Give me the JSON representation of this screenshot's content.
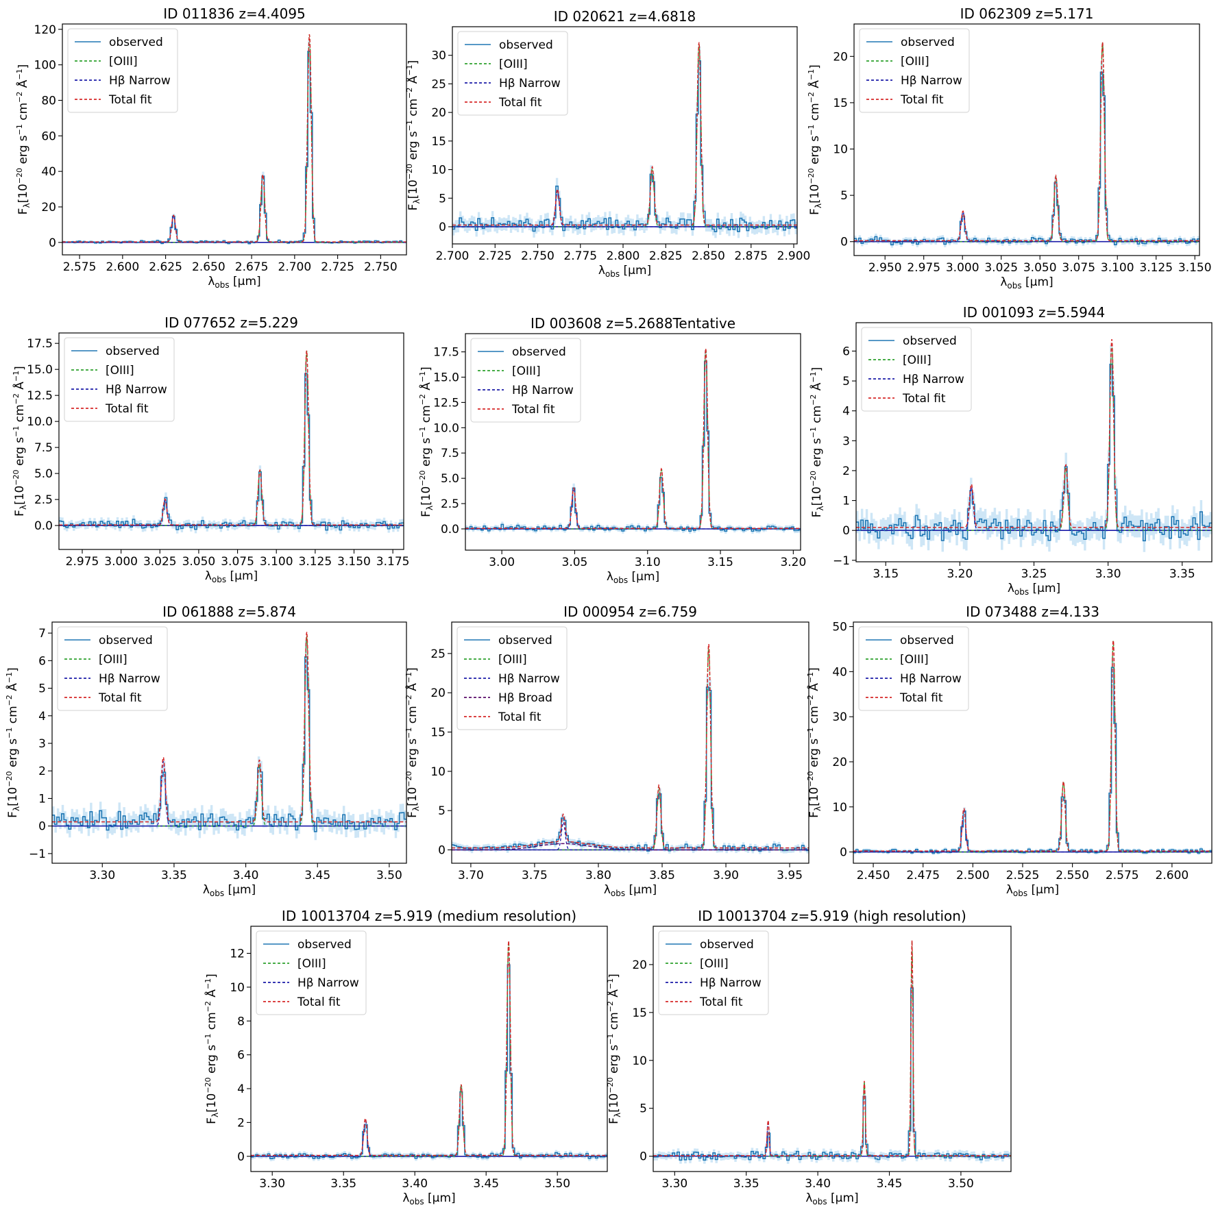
{
  "figure": {
    "xlabel_main": "λ",
    "xlabel_sub": "obs",
    "xlabel_unit": " [μm]",
    "ylabel_F": "F",
    "ylabel_sub": "λ",
    "ylabel_rest": "[10",
    "ylabel_exp1": "−20",
    "ylabel_mid1": " erg s",
    "ylabel_exp2": "−1",
    "ylabel_mid2": " cm",
    "ylabel_exp3": "−2",
    "ylabel_mid3": " Å",
    "ylabel_exp4": "−1",
    "ylabel_end": "]",
    "colors": {
      "observed": "#1f77b4",
      "error_band": "#a6d2ee",
      "oiii": "#2ca02c",
      "hb_narrow": "#1a1aa8",
      "hb_broad": "#5a0a6a",
      "total_fit": "#d62728",
      "continuum": "#1a1aa8"
    }
  },
  "chart_data": [
    {
      "type": "line",
      "title": "ID 011836  z=4.4095",
      "xlim": [
        2.565,
        2.765
      ],
      "ylim": [
        -7,
        123
      ],
      "xticks": [
        2.575,
        2.6,
        2.625,
        2.65,
        2.675,
        2.7,
        2.725,
        2.75
      ],
      "xtick_labels": [
        "2.575",
        "2.600",
        "2.625",
        "2.650",
        "2.675",
        "2.700",
        "2.725",
        "2.750"
      ],
      "yticks": [
        0,
        20,
        40,
        60,
        80,
        100,
        120
      ],
      "ytick_labels": [
        "0",
        "20",
        "40",
        "60",
        "80",
        "100",
        "120"
      ],
      "lines": [
        {
          "x": 2.6296,
          "amp": 15
        },
        {
          "x": 2.6815,
          "amp": 38
        },
        {
          "x": 2.7086,
          "amp": 117
        }
      ],
      "sigma": 0.0011,
      "noise": 0.5,
      "continuum": 0.3,
      "legend": [
        {
          "label": "observed",
          "key": "observed"
        },
        {
          "label": "[OIII]",
          "key": "oiii"
        },
        {
          "label": "Hβ Narrow",
          "key": "hb_narrow"
        },
        {
          "label": "Total fit",
          "key": "total_fit"
        }
      ]
    },
    {
      "type": "line",
      "title": "ID 020621  z=4.6818",
      "xlim": [
        2.7,
        2.902
      ],
      "ylim": [
        -3,
        35
      ],
      "xticks": [
        2.7,
        2.725,
        2.75,
        2.775,
        2.8,
        2.825,
        2.85,
        2.875,
        2.9
      ],
      "xtick_labels": [
        "2.700",
        "2.725",
        "2.750",
        "2.775",
        "2.800",
        "2.825",
        "2.850",
        "2.875",
        "2.900"
      ],
      "yticks": [
        0,
        5,
        10,
        15,
        20,
        25,
        30
      ],
      "ytick_labels": [
        "0",
        "5",
        "10",
        "15",
        "20",
        "25",
        "30"
      ],
      "lines": [
        {
          "x": 2.7616,
          "amp": 6.3
        },
        {
          "x": 2.8171,
          "amp": 10.2
        },
        {
          "x": 2.8445,
          "amp": 32
        }
      ],
      "sigma": 0.0011,
      "noise": 0.9,
      "continuum": 0.3,
      "legend": [
        {
          "label": "observed",
          "key": "observed"
        },
        {
          "label": "[OIII]",
          "key": "oiii"
        },
        {
          "label": "Hβ Narrow",
          "key": "hb_narrow"
        },
        {
          "label": "Total fit",
          "key": "total_fit"
        }
      ]
    },
    {
      "type": "line",
      "title": "ID 062309  z=5.171",
      "xlim": [
        2.93,
        3.153
      ],
      "ylim": [
        -1.5,
        23.5
      ],
      "xticks": [
        2.95,
        2.975,
        3.0,
        3.025,
        3.05,
        3.075,
        3.1,
        3.125,
        3.15
      ],
      "xtick_labels": [
        "2.950",
        "2.975",
        "3.000",
        "3.025",
        "3.050",
        "3.075",
        "3.100",
        "3.125",
        "3.150"
      ],
      "yticks": [
        0,
        5,
        10,
        15,
        20
      ],
      "ytick_labels": [
        "0",
        "5",
        "10",
        "15",
        "20"
      ],
      "lines": [
        {
          "x": 3.0003,
          "amp": 3.2
        },
        {
          "x": 3.0603,
          "amp": 7
        },
        {
          "x": 3.0904,
          "amp": 21.5
        }
      ],
      "sigma": 0.0012,
      "noise": 0.25,
      "continuum": 0.1,
      "legend": [
        {
          "label": "observed",
          "key": "observed"
        },
        {
          "label": "[OIII]",
          "key": "oiii"
        },
        {
          "label": "Hβ Narrow",
          "key": "hb_narrow"
        },
        {
          "label": "Total fit",
          "key": "total_fit"
        }
      ]
    },
    {
      "type": "line",
      "title": "ID 077652  z=5.229",
      "xlim": [
        2.96,
        3.182
      ],
      "ylim": [
        -2.3,
        18.5
      ],
      "xticks": [
        2.975,
        3.0,
        3.025,
        3.05,
        3.075,
        3.1,
        3.125,
        3.15,
        3.175
      ],
      "xtick_labels": [
        "2.975",
        "3.000",
        "3.025",
        "3.050",
        "3.075",
        "3.100",
        "3.125",
        "3.150",
        "3.175"
      ],
      "yticks": [
        0,
        2.5,
        5,
        7.5,
        10,
        12.5,
        15,
        17.5
      ],
      "ytick_labels": [
        "0.0",
        "2.5",
        "5.0",
        "7.5",
        "10.0",
        "12.5",
        "15.0",
        "17.5"
      ],
      "lines": [
        {
          "x": 3.0283,
          "amp": 2.5
        },
        {
          "x": 3.0894,
          "amp": 5.3
        },
        {
          "x": 3.1195,
          "amp": 16.8
        }
      ],
      "sigma": 0.0012,
      "noise": 0.3,
      "continuum": 0.05,
      "legend": [
        {
          "label": "observed",
          "key": "observed"
        },
        {
          "label": "[OIII]",
          "key": "oiii"
        },
        {
          "label": "Hβ Narrow",
          "key": "hb_narrow"
        },
        {
          "label": "Total fit",
          "key": "total_fit"
        }
      ]
    },
    {
      "type": "line",
      "title": "ID 003608  z=5.2688Tentative",
      "xlim": [
        2.975,
        3.205
      ],
      "ylim": [
        -2.1,
        19.3
      ],
      "xticks": [
        3.0,
        3.05,
        3.1,
        3.15,
        3.2
      ],
      "xtick_labels": [
        "3.00",
        "3.05",
        "3.10",
        "3.15",
        "3.20"
      ],
      "yticks": [
        0,
        2.5,
        5,
        7.5,
        10,
        12.5,
        15,
        17.5
      ],
      "ytick_labels": [
        "0.0",
        "2.5",
        "5.0",
        "7.5",
        "10.0",
        "12.5",
        "15.0",
        "17.5"
      ],
      "lines": [
        {
          "x": 3.0493,
          "amp": 4
        },
        {
          "x": 3.1095,
          "amp": 5.9
        },
        {
          "x": 3.1399,
          "amp": 17.8
        }
      ],
      "sigma": 0.0013,
      "noise": 0.2,
      "continuum": 0.05,
      "legend": [
        {
          "label": "observed",
          "key": "observed"
        },
        {
          "label": "[OIII]",
          "key": "oiii"
        },
        {
          "label": "Hβ Narrow",
          "key": "hb_narrow"
        },
        {
          "label": "Total fit",
          "key": "total_fit"
        }
      ]
    },
    {
      "type": "line",
      "title": "ID 001093  z=5.5944",
      "xlim": [
        3.13,
        3.37
      ],
      "ylim": [
        -1.05,
        6.95
      ],
      "xticks": [
        3.15,
        3.2,
        3.25,
        3.3,
        3.35
      ],
      "xtick_labels": [
        "3.15",
        "3.20",
        "3.25",
        "3.30",
        "3.35"
      ],
      "yticks": [
        -1,
        0,
        1,
        2,
        3,
        4,
        5,
        6
      ],
      "ytick_labels": [
        "−1",
        "0",
        "1",
        "2",
        "3",
        "4",
        "5",
        "6"
      ],
      "lines": [
        {
          "x": 3.2078,
          "amp": 1.45
        },
        {
          "x": 3.2715,
          "amp": 2.1
        },
        {
          "x": 3.3025,
          "amp": 6.3
        }
      ],
      "sigma": 0.0013,
      "noise": 0.3,
      "continuum": 0.1,
      "legend": [
        {
          "label": "observed",
          "key": "observed"
        },
        {
          "label": "[OIII]",
          "key": "oiii"
        },
        {
          "label": "Hβ Narrow",
          "key": "hb_narrow"
        },
        {
          "label": "Total fit",
          "key": "total_fit"
        }
      ]
    },
    {
      "type": "line",
      "title": "ID 061888  z=5.874",
      "xlim": [
        3.265,
        3.512
      ],
      "ylim": [
        -1.35,
        7.4
      ],
      "xticks": [
        3.3,
        3.35,
        3.4,
        3.45,
        3.5
      ],
      "xtick_labels": [
        "3.30",
        "3.35",
        "3.40",
        "3.45",
        "3.50"
      ],
      "yticks": [
        -1,
        0,
        1,
        2,
        3,
        4,
        5,
        6,
        7
      ],
      "ytick_labels": [
        "−1",
        "0",
        "1",
        "2",
        "3",
        "4",
        "5",
        "6",
        "7"
      ],
      "lines": [
        {
          "x": 3.3425,
          "amp": 2.35
        },
        {
          "x": 3.4095,
          "amp": 2.25
        },
        {
          "x": 3.4425,
          "amp": 6.9
        }
      ],
      "sigma": 0.0014,
      "noise": 0.25,
      "continuum": 0.15,
      "legend": [
        {
          "label": "observed",
          "key": "observed"
        },
        {
          "label": "[OIII]",
          "key": "oiii"
        },
        {
          "label": "Hβ Narrow",
          "key": "hb_narrow"
        },
        {
          "label": "Total fit",
          "key": "total_fit"
        }
      ]
    },
    {
      "type": "line",
      "title": "ID 000954  z=6.759",
      "xlim": [
        3.685,
        3.965
      ],
      "ylim": [
        -1.7,
        29
      ],
      "xticks": [
        3.7,
        3.75,
        3.8,
        3.85,
        3.9,
        3.95
      ],
      "xtick_labels": [
        "3.70",
        "3.75",
        "3.80",
        "3.85",
        "3.90",
        "3.95"
      ],
      "yticks": [
        0,
        5,
        10,
        15,
        20,
        25
      ],
      "ytick_labels": [
        "0",
        "5",
        "10",
        "15",
        "20",
        "25"
      ],
      "lines": [
        {
          "x": 3.7725,
          "amp": 3.5
        },
        {
          "x": 3.8475,
          "amp": 8
        },
        {
          "x": 3.8865,
          "amp": 26
        }
      ],
      "broad": {
        "x": 3.7725,
        "amp": 0.8,
        "sigma": 0.02
      },
      "sigma": 0.0015,
      "noise": 0.3,
      "continuum": 0.25,
      "legend": [
        {
          "label": "observed",
          "key": "observed"
        },
        {
          "label": "[OIII]",
          "key": "oiii"
        },
        {
          "label": "Hβ Narrow",
          "key": "hb_narrow"
        },
        {
          "label": "Hβ Broad",
          "key": "hb_broad"
        },
        {
          "label": "Total fit",
          "key": "total_fit"
        }
      ]
    },
    {
      "type": "line",
      "title": "ID 073488  z=4.133",
      "xlim": [
        2.44,
        2.62
      ],
      "ylim": [
        -2.5,
        51
      ],
      "xticks": [
        2.45,
        2.475,
        2.5,
        2.525,
        2.55,
        2.575,
        2.6
      ],
      "xtick_labels": [
        "2.450",
        "2.475",
        "2.500",
        "2.525",
        "2.550",
        "2.575",
        "2.600"
      ],
      "yticks": [
        0,
        10,
        20,
        30,
        40,
        50
      ],
      "ytick_labels": [
        "0",
        "10",
        "20",
        "30",
        "40",
        "50"
      ],
      "lines": [
        {
          "x": 2.4955,
          "amp": 9.5
        },
        {
          "x": 2.5455,
          "amp": 15.5
        },
        {
          "x": 2.5705,
          "amp": 47
        }
      ],
      "sigma": 0.0009,
      "noise": 0.3,
      "continuum": 0.2,
      "legend": [
        {
          "label": "observed",
          "key": "observed"
        },
        {
          "label": "[OIII]",
          "key": "oiii"
        },
        {
          "label": "Hβ Narrow",
          "key": "hb_narrow"
        },
        {
          "label": "Total fit",
          "key": "total_fit"
        }
      ]
    },
    {
      "type": "line",
      "title": "ID 10013704  z=5.919 (medium resolution)",
      "xlim": [
        3.285,
        3.535
      ],
      "ylim": [
        -0.9,
        13.6
      ],
      "xticks": [
        3.3,
        3.35,
        3.4,
        3.45,
        3.5
      ],
      "xtick_labels": [
        "3.30",
        "3.35",
        "3.40",
        "3.45",
        "3.50"
      ],
      "yticks": [
        0,
        2,
        4,
        6,
        8,
        10,
        12
      ],
      "ytick_labels": [
        "0",
        "2",
        "4",
        "6",
        "8",
        "10",
        "12"
      ],
      "lines": [
        {
          "x": 3.3653,
          "amp": 2.2
        },
        {
          "x": 3.4325,
          "amp": 4.2
        },
        {
          "x": 3.4658,
          "amp": 12.7
        }
      ],
      "sigma": 0.0012,
      "noise": 0.12,
      "continuum": 0.05,
      "legend": [
        {
          "label": "observed",
          "key": "observed"
        },
        {
          "label": "[OIII]",
          "key": "oiii"
        },
        {
          "label": "Hβ Narrow",
          "key": "hb_narrow"
        },
        {
          "label": "Total fit",
          "key": "total_fit"
        }
      ]
    },
    {
      "type": "line",
      "title": "ID 10013704  z=5.919 (high resolution)",
      "xlim": [
        3.285,
        3.535
      ],
      "ylim": [
        -1.6,
        24
      ],
      "xticks": [
        3.3,
        3.35,
        3.4,
        3.45,
        3.5
      ],
      "xtick_labels": [
        "3.30",
        "3.35",
        "3.40",
        "3.45",
        "3.50"
      ],
      "yticks": [
        0,
        5,
        10,
        15,
        20
      ],
      "ytick_labels": [
        "0",
        "5",
        "10",
        "15",
        "20"
      ],
      "lines": [
        {
          "x": 3.3653,
          "amp": 3.7
        },
        {
          "x": 3.4325,
          "amp": 7.8
        },
        {
          "x": 3.4658,
          "amp": 22.5
        }
      ],
      "sigma": 0.0007,
      "noise": 0.3,
      "continuum": 0.05,
      "legend": [
        {
          "label": "observed",
          "key": "observed"
        },
        {
          "label": "[OIII]",
          "key": "oiii"
        },
        {
          "label": "Hβ Narrow",
          "key": "hb_narrow"
        },
        {
          "label": "Total fit",
          "key": "total_fit"
        }
      ]
    }
  ]
}
